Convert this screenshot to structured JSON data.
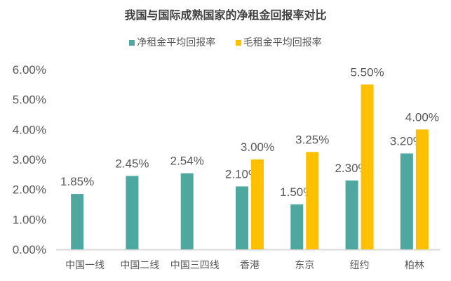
{
  "chart_data": {
    "type": "bar",
    "title": "我国与国际成熟国家的净租金回报率对比",
    "categories": [
      "中国一线",
      "中国二线",
      "中国三四线",
      "香港",
      "东京",
      "纽约",
      "柏林"
    ],
    "series": [
      {
        "name": "净租金平均回报率",
        "color": "#4FA8A0",
        "values": [
          1.85,
          2.45,
          2.54,
          2.1,
          1.5,
          2.3,
          3.2
        ],
        "labels": [
          "1.85%",
          "2.45%",
          "2.54%",
          "2.10%",
          "1.50%",
          "2.30%",
          "3.20%"
        ]
      },
      {
        "name": "毛租金平均回报率",
        "color": "#FFC000",
        "values": [
          null,
          null,
          null,
          3.0,
          3.25,
          5.5,
          4.0
        ],
        "labels": [
          null,
          null,
          null,
          "3.00%",
          "3.25%",
          "5.50%",
          "4.00%"
        ]
      }
    ],
    "ylim": [
      0,
      6
    ],
    "yticks": [
      "0.00%",
      "1.00%",
      "2.00%",
      "3.00%",
      "4.00%",
      "5.00%",
      "6.00%"
    ],
    "grid": false,
    "legend_position": "top"
  }
}
